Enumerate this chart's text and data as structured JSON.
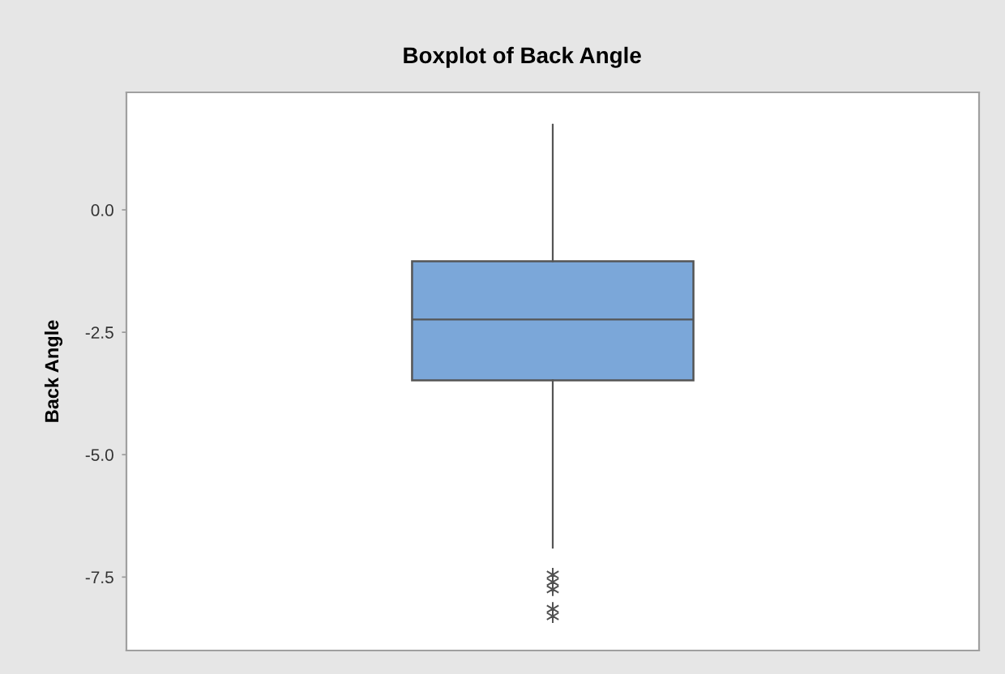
{
  "chart_data": {
    "type": "box",
    "title": "Boxplot of Back Angle",
    "ylabel": "Back Angle",
    "categories": [
      null
    ],
    "boxes": [
      {
        "low": -6.9,
        "q1": -3.48,
        "median": -2.24,
        "q3": -1.05,
        "high": 1.74,
        "outliers": [
          -7.45,
          -7.6,
          -7.75,
          -8.15,
          -8.3
        ]
      }
    ],
    "color": "#7ba7d9",
    "ylim": [
      -9.0,
      2.4
    ],
    "yticks": [
      {
        "value": 0,
        "label": "0.0"
      },
      -2.5,
      {
        "value": -5,
        "label": "-5.0"
      },
      -7.5
    ],
    "marker": "star",
    "grid": false,
    "legend": false
  }
}
